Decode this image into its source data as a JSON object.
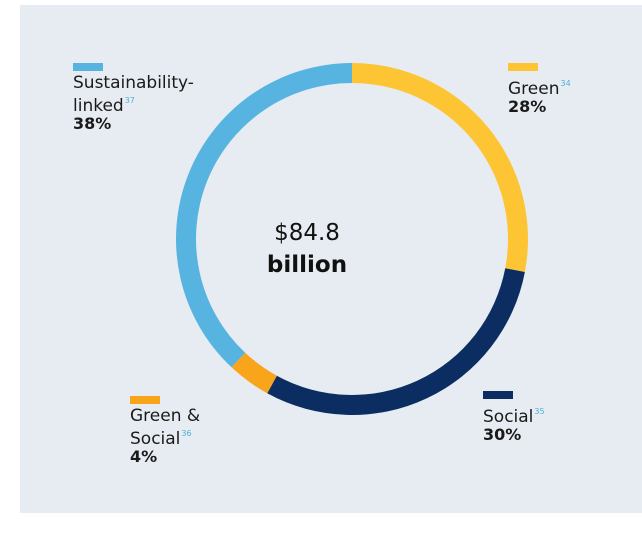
{
  "colors": {
    "background": "#e6ecf1",
    "sustainability_linked": "#57b4e0",
    "green": "#fdc533",
    "social": "#0b2d62",
    "green_and_social": "#f9a51b",
    "footnote": "#4fb0d8"
  },
  "chart_data": {
    "type": "pie",
    "variant": "donut",
    "center_label": {
      "amount": "$84.8",
      "unit": "billion"
    },
    "slices": [
      {
        "key": "green",
        "label_lines": [
          "Green"
        ],
        "footnote": "34",
        "percent_label": "28%",
        "value": 28,
        "color": "#fdc533"
      },
      {
        "key": "social",
        "label_lines": [
          "Social"
        ],
        "footnote": "35",
        "percent_label": "30%",
        "value": 30,
        "color": "#0b2d62"
      },
      {
        "key": "green_and_social",
        "label_lines": [
          "Green &",
          "Social"
        ],
        "footnote": "36",
        "percent_label": "4%",
        "value": 4,
        "color": "#f9a51b"
      },
      {
        "key": "sustainability_linked",
        "label_lines": [
          "Sustainability-",
          "linked"
        ],
        "footnote": "37",
        "percent_label": "38%",
        "value": 38,
        "color": "#57b4e0"
      }
    ],
    "legend_placement": "around",
    "grid": false
  }
}
